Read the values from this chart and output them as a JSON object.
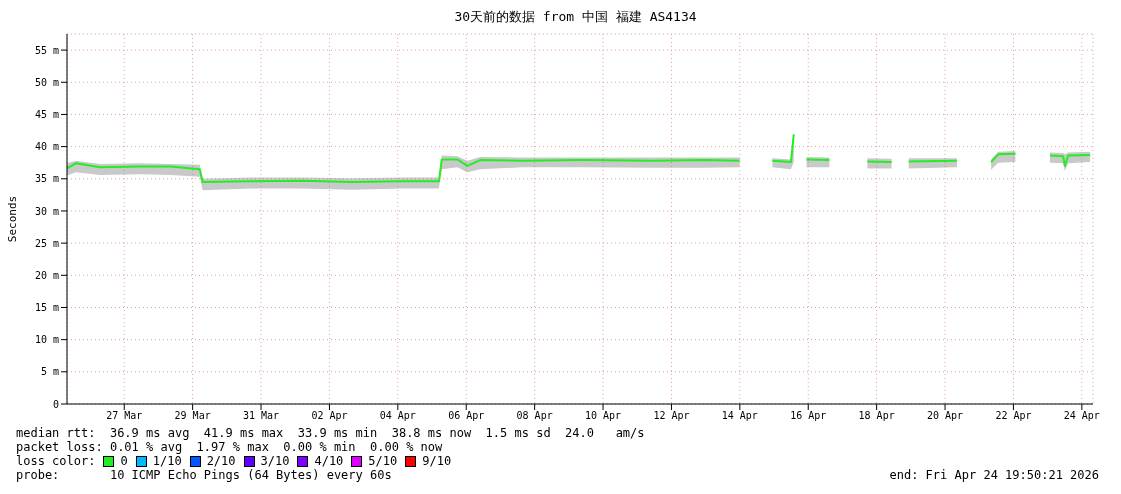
{
  "chart_data": {
    "type": "line",
    "title": "30天前的数据 from 中国 福建 AS4134",
    "ylabel": "Seconds",
    "x": [
      "2026-03-25T19:50",
      "2026-03-26T02:00",
      "2026-03-26T19:00",
      "2026-03-27T23:00",
      "2026-03-28T20:30",
      "2026-03-29T17:00",
      "2026-03-29T19:00",
      "2026-03-31T04:50",
      "2026-04-01T16:20",
      "2026-04-03T03:50",
      "2026-04-04T14:50",
      "2026-04-05T16:50",
      "2026-04-05T18:50",
      "2026-04-06T05:50",
      "2026-04-06T12:50",
      "2026-04-06T21:50",
      "2026-04-08T03:50",
      "2026-04-09T21:50",
      "2026-04-11T23:20",
      "2026-04-13T10:50",
      "2026-04-14T11:50",
      "2026-04-14T20:00",
      "2026-04-15T10:50",
      "2026-04-15T23:50",
      "2026-04-16T01:50",
      "2026-04-16T05:00",
      "2026-04-16T10:50",
      "2026-04-17T02:50",
      "2026-04-17T12:00",
      "2026-04-18T05:30",
      "2026-04-18T22:30",
      "2026-04-19T03:00",
      "2026-04-19T10:30",
      "2026-04-20T20:20",
      "2026-04-21T10:00",
      "2026-04-21T20:20",
      "2026-04-22T01:20",
      "2026-04-22T13:20",
      "2026-04-23T00:00",
      "2026-04-23T13:40",
      "2026-04-23T22:50",
      "2026-04-24T00:10",
      "2026-04-24T02:20",
      "2026-04-24T17:50"
    ],
    "series": [
      {
        "color": "#22ee22",
        "values": [
          36.6,
          37.4,
          36.8,
          36.9,
          36.9,
          36.5,
          34.5,
          34.6,
          34.7,
          34.5,
          34.6,
          34.6,
          38.0,
          38.0,
          37.0,
          37.9,
          37.8,
          37.9,
          37.8,
          37.9,
          37.8,
          null,
          37.8,
          37.6,
          41.9,
          null,
          38.0,
          37.9,
          null,
          37.7,
          37.6,
          null,
          37.7,
          37.8,
          null,
          37.6,
          38.8,
          38.9,
          null,
          38.6,
          38.5,
          37.0,
          38.6,
          38.7
        ],
        "lower": [
          35.5,
          36.0,
          35.6,
          35.7,
          35.6,
          35.3,
          33.2,
          33.5,
          33.5,
          33.3,
          33.5,
          33.5,
          36.5,
          36.8,
          36.0,
          36.5,
          36.8,
          36.8,
          36.7,
          36.7,
          36.8,
          null,
          36.8,
          36.5,
          37.6,
          null,
          36.8,
          36.8,
          null,
          36.6,
          36.6,
          null,
          36.6,
          36.8,
          null,
          36.4,
          37.5,
          37.6,
          null,
          37.5,
          37.4,
          36.2,
          37.4,
          37.6
        ],
        "upper": [
          37.4,
          37.8,
          37.3,
          37.4,
          37.3,
          37.2,
          35.0,
          35.2,
          35.2,
          35.1,
          35.2,
          35.2,
          38.6,
          38.5,
          37.8,
          38.4,
          38.3,
          38.3,
          38.3,
          38.3,
          38.3,
          null,
          38.2,
          38.0,
          42.0,
          null,
          38.4,
          38.3,
          null,
          38.2,
          38.1,
          null,
          38.2,
          38.2,
          null,
          38.0,
          39.2,
          39.3,
          null,
          39.1,
          39.0,
          38.8,
          39.1,
          39.2
        ]
      }
    ],
    "xlim": [
      "2026-03-25T19:50",
      "2026-04-24T19:50"
    ],
    "xticks": [
      {
        "value": "2026-03-27T12:00",
        "label": "27 Mar"
      },
      {
        "value": "2026-03-29T12:00",
        "label": "29 Mar"
      },
      {
        "value": "2026-03-31T12:00",
        "label": "31 Mar"
      },
      {
        "value": "2026-04-02T12:00",
        "label": "02 Apr"
      },
      {
        "value": "2026-04-04T12:00",
        "label": "04 Apr"
      },
      {
        "value": "2026-04-06T12:00",
        "label": "06 Apr"
      },
      {
        "value": "2026-04-08T12:00",
        "label": "08 Apr"
      },
      {
        "value": "2026-04-10T12:00",
        "label": "10 Apr"
      },
      {
        "value": "2026-04-12T12:00",
        "label": "12 Apr"
      },
      {
        "value": "2026-04-14T12:00",
        "label": "14 Apr"
      },
      {
        "value": "2026-04-16T12:00",
        "label": "16 Apr"
      },
      {
        "value": "2026-04-18T12:00",
        "label": "18 Apr"
      },
      {
        "value": "2026-04-20T12:00",
        "label": "20 Apr"
      },
      {
        "value": "2026-04-22T12:00",
        "label": "22 Apr"
      },
      {
        "value": "2026-04-24T12:00",
        "label": "24 Apr"
      }
    ],
    "ylim": [
      0,
      57.5
    ],
    "yticks": [
      0,
      {
        "value": 5,
        "label": "5 m"
      },
      {
        "value": 10,
        "label": "10 m"
      },
      {
        "value": 15,
        "label": "15 m"
      },
      {
        "value": 20,
        "label": "20 m"
      },
      {
        "value": 25,
        "label": "25 m"
      },
      {
        "value": 30,
        "label": "30 m"
      },
      {
        "value": 35,
        "label": "35 m"
      },
      {
        "value": 40,
        "label": "40 m"
      },
      {
        "value": 45,
        "label": "45 m"
      },
      {
        "value": 50,
        "label": "50 m"
      },
      {
        "value": 55,
        "label": "55 m"
      }
    ],
    "grid": true,
    "legend": false,
    "marker": "none",
    "line_style": "solid",
    "annotations": [
      "median rtt:  36.9 ms avg  41.9 ms max  33.9 ms min  38.8 ms now  1.5 ms sd  24.0   am/s",
      "packet loss: 0.01 % avg  1.97 % max  0.00 % min  0.00 % now",
      "loss color:",
      "0",
      "1/10",
      "2/10",
      "3/10",
      "4/10",
      "5/10",
      "9/10",
      "probe:       10 ICMP Echo Pings (64 Bytes) every 60s",
      "end: Fri Apr 24 19:50:21 2026"
    ]
  }
}
